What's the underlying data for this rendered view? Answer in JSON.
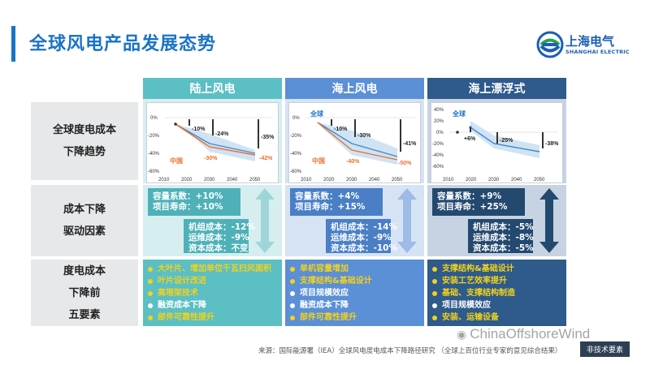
{
  "title": "全球风电产品发展态势",
  "logo": {
    "name": "上海电气",
    "sub": "SHANGHAI ELECTRIC"
  },
  "colors": {
    "accent": "#1a73c6",
    "land": "#5bbfc4",
    "offshore": "#5b8fd6",
    "floating": "#2e5a8c",
    "orange": "#e8702a",
    "yellow": "#f2d21b"
  },
  "row_labels": [
    {
      "lines": [
        "全球度电成本",
        "下降趋势"
      ]
    },
    {
      "lines": [
        "成本下降",
        "驱动因素"
      ]
    },
    {
      "lines": [
        "度电成本",
        "下降前",
        "五要素"
      ]
    }
  ],
  "columns": [
    {
      "header": "陆上风电",
      "chart": {
        "global_label": "",
        "china_label": "中国",
        "callouts": [
          "-10%",
          "-24%",
          "-35%",
          "-30%",
          "-42%"
        ],
        "y_ticks": [
          "0%",
          "-20%",
          "-40%",
          "-60%"
        ],
        "x_ticks": [
          "2010",
          "2020",
          "2030",
          "2040",
          "2050"
        ]
      },
      "factors_top": [
        "容量系数：+10%",
        "项目寿命：+10%"
      ],
      "factors_bottom": [
        "机组成本：-12%",
        "运维成本：-9%",
        "资本成本：不变"
      ],
      "elements": [
        "大叶片、增加单位千瓦扫风面积",
        "叶片设计改进",
        "高塔架技术",
        "融资成本下降",
        "部件可靠性提升"
      ]
    },
    {
      "header": "海上风电",
      "chart": {
        "global_label": "全球",
        "china_label": "中国",
        "callouts": [
          "-10%",
          "-30%",
          "-41%",
          "-40%",
          "-50%"
        ],
        "y_ticks": [
          "0%",
          "-20%",
          "-40%",
          "-60%"
        ],
        "x_ticks": [
          "2010",
          "2020",
          "2030",
          "2040",
          "2050"
        ]
      },
      "factors_top": [
        "容量系数：+4%",
        "项目寿命：+15%"
      ],
      "factors_bottom": [
        "机组成本：-14%",
        "运维成本：-9%",
        "资本成本：-10%"
      ],
      "elements": [
        "单机容量增加",
        "支撑结构&基础设计",
        "项目规模效应",
        "融资成本下降",
        "部件可靠性提升"
      ]
    },
    {
      "header": "海上漂浮式",
      "chart": {
        "global_label": "全球",
        "china_label": "",
        "callouts": [
          "+6%",
          "-25%",
          "-38%"
        ],
        "y_ticks": [
          "40%",
          "20%",
          "0%",
          "-20%",
          "-40%",
          "-60%"
        ],
        "x_ticks": [
          "2010",
          "2020",
          "2030",
          "2040",
          "2050"
        ]
      },
      "factors_top": [
        "容量系数：+9%",
        "项目寿命：+25%"
      ],
      "factors_bottom": [
        "机组成本：-5%",
        "运维成本：-8%",
        "资本成本：-5%"
      ],
      "elements": [
        "支撑结构&基础设计",
        "安装工艺效率提升",
        "基础、支撑结构制造",
        "项目规模效应",
        "安装、运输设备"
      ]
    }
  ],
  "source": "来源：国际能源署（IEA）全球风电度电成本下降路径研究 （全球上百位行业专家的意见综合结果）",
  "watermark": "ChinaOffshoreWind",
  "tag": "非技术要素"
}
